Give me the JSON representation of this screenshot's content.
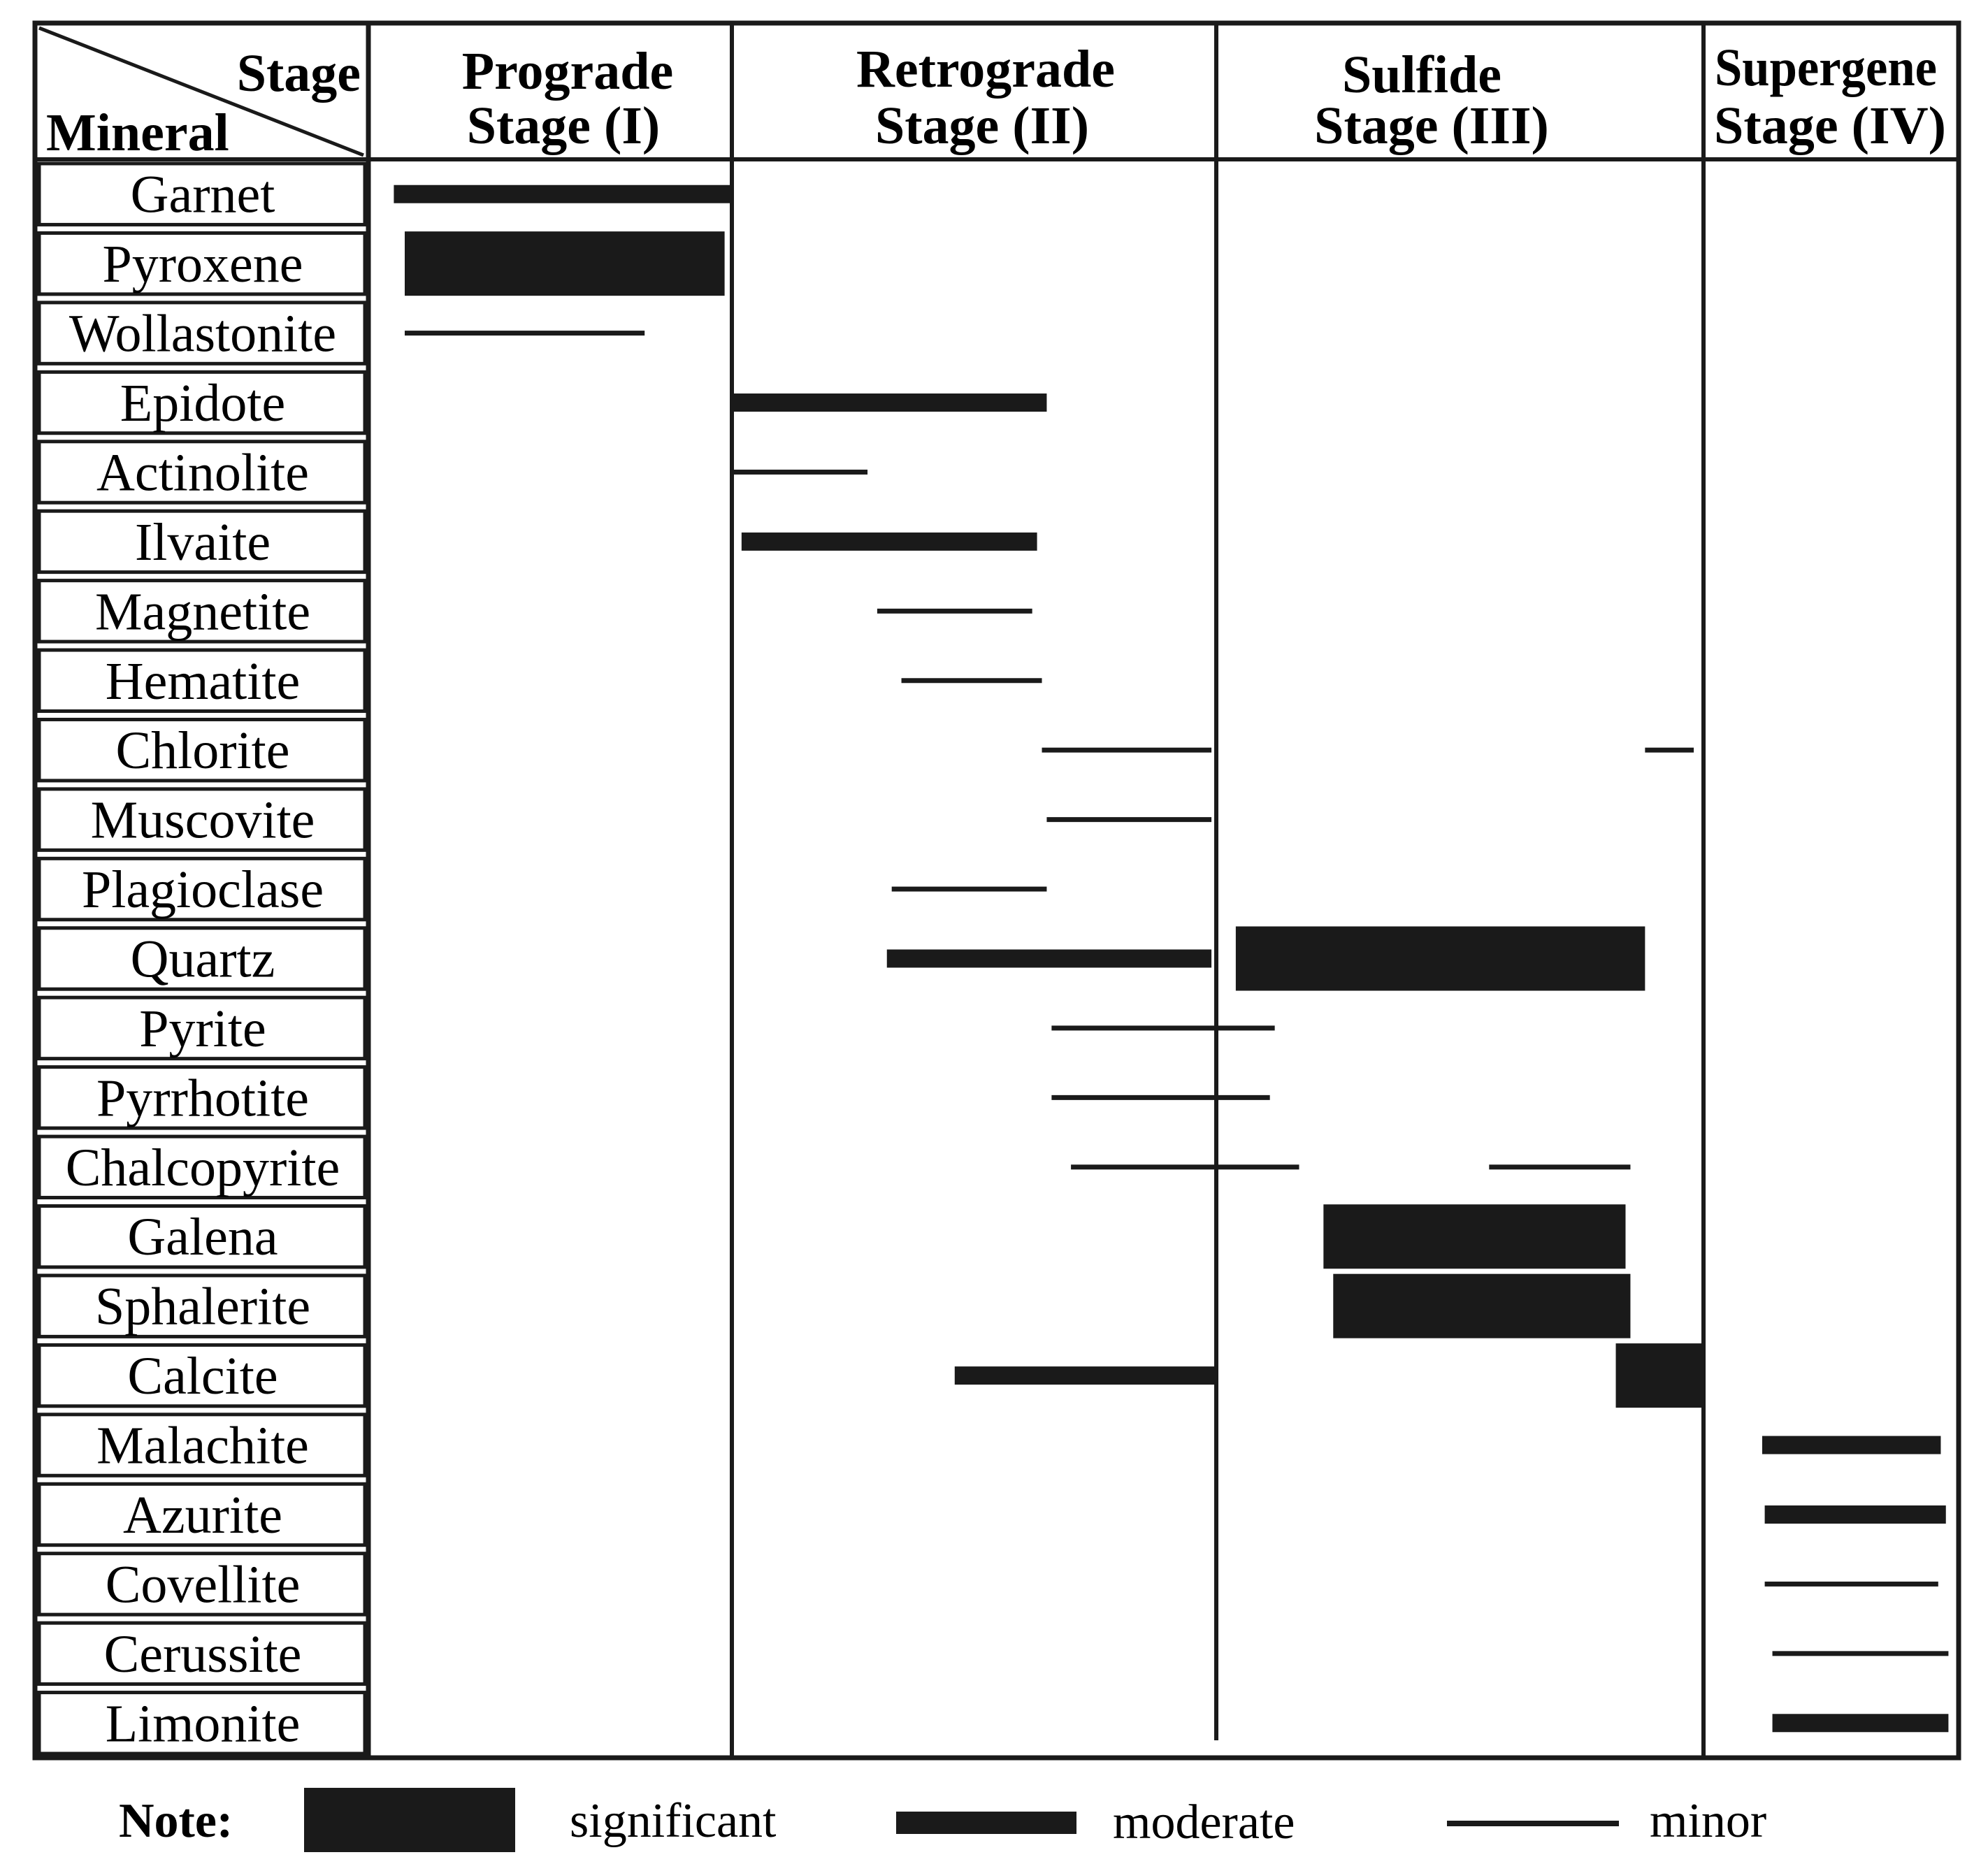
{
  "header": {
    "corner_stage": "Stage",
    "corner_mineral": "Mineral",
    "stages": [
      {
        "line1": "Prograde",
        "line2": "Stage (I)"
      },
      {
        "line1": "Retrograde",
        "line2": "Stage (II)"
      },
      {
        "line1": "Sulfide",
        "line2": "Stage (III)"
      },
      {
        "line1": "Supergene",
        "line2": "Stage (IV)"
      }
    ]
  },
  "minerals": [
    {
      "name": "Garnet",
      "ranges": [
        {
          "from": 0.07,
          "to": 1.0,
          "level": "moderate"
        }
      ]
    },
    {
      "name": "Pyroxene",
      "ranges": [
        {
          "from": 0.1,
          "to": 0.98,
          "level": "significant"
        }
      ]
    },
    {
      "name": "Wollastonite",
      "ranges": [
        {
          "from": 0.1,
          "to": 0.76,
          "level": "minor"
        }
      ]
    },
    {
      "name": "Epidote",
      "ranges": [
        {
          "from": 1.0,
          "to": 1.65,
          "level": "moderate"
        }
      ]
    },
    {
      "name": "Actinolite",
      "ranges": [
        {
          "from": 1.0,
          "to": 1.28,
          "level": "minor"
        }
      ]
    },
    {
      "name": "Ilvaite",
      "ranges": [
        {
          "from": 1.02,
          "to": 1.63,
          "level": "moderate"
        }
      ]
    },
    {
      "name": "Magnetite",
      "ranges": [
        {
          "from": 1.3,
          "to": 1.62,
          "level": "minor"
        }
      ]
    },
    {
      "name": "Hematite",
      "ranges": [
        {
          "from": 1.35,
          "to": 1.64,
          "level": "minor"
        }
      ]
    },
    {
      "name": "Chlorite",
      "ranges": [
        {
          "from": 1.64,
          "to": 1.99,
          "level": "minor"
        },
        {
          "from": 2.88,
          "to": 2.98,
          "level": "minor"
        }
      ]
    },
    {
      "name": "Muscovite",
      "ranges": [
        {
          "from": 1.65,
          "to": 1.99,
          "level": "minor"
        }
      ]
    },
    {
      "name": "Plagioclase",
      "ranges": [
        {
          "from": 1.33,
          "to": 1.65,
          "level": "minor"
        }
      ]
    },
    {
      "name": "Quartz",
      "ranges": [
        {
          "from": 1.32,
          "to": 1.99,
          "level": "moderate"
        },
        {
          "from": 2.04,
          "to": 2.88,
          "level": "significant"
        }
      ]
    },
    {
      "name": "Pyrite",
      "ranges": [
        {
          "from": 1.66,
          "to": 2.12,
          "level": "minor"
        }
      ]
    },
    {
      "name": "Pyrrhotite",
      "ranges": [
        {
          "from": 1.66,
          "to": 2.11,
          "level": "minor"
        }
      ]
    },
    {
      "name": "Chalcopyrite",
      "ranges": [
        {
          "from": 1.7,
          "to": 2.17,
          "level": "minor"
        },
        {
          "from": 2.56,
          "to": 2.85,
          "level": "minor"
        }
      ]
    },
    {
      "name": "Galena",
      "ranges": [
        {
          "from": 2.22,
          "to": 2.84,
          "level": "significant"
        }
      ]
    },
    {
      "name": "Sphalerite",
      "ranges": [
        {
          "from": 2.24,
          "to": 2.85,
          "level": "significant"
        }
      ]
    },
    {
      "name": "Calcite",
      "ranges": [
        {
          "from": 1.46,
          "to": 2.0,
          "level": "moderate"
        },
        {
          "from": 2.82,
          "to": 3.0,
          "level": "significant"
        }
      ]
    },
    {
      "name": "Malachite",
      "ranges": [
        {
          "from": 3.23,
          "to": 3.93,
          "level": "moderate"
        }
      ]
    },
    {
      "name": "Azurite",
      "ranges": [
        {
          "from": 3.24,
          "to": 3.95,
          "level": "moderate"
        }
      ]
    },
    {
      "name": "Covellite",
      "ranges": [
        {
          "from": 3.24,
          "to": 3.92,
          "level": "minor"
        }
      ]
    },
    {
      "name": "Cerussite",
      "ranges": [
        {
          "from": 3.27,
          "to": 3.96,
          "level": "minor"
        }
      ]
    },
    {
      "name": "Limonite",
      "ranges": [
        {
          "from": 3.27,
          "to": 3.96,
          "level": "moderate"
        }
      ]
    }
  ],
  "legend": {
    "title": "Note:",
    "items": [
      {
        "level": "significant",
        "label": "significant"
      },
      {
        "level": "moderate",
        "label": "moderate"
      },
      {
        "level": "minor",
        "label": "minor"
      }
    ]
  },
  "colors": {
    "ink": "#1a1a1a",
    "background": "#ffffff"
  }
}
